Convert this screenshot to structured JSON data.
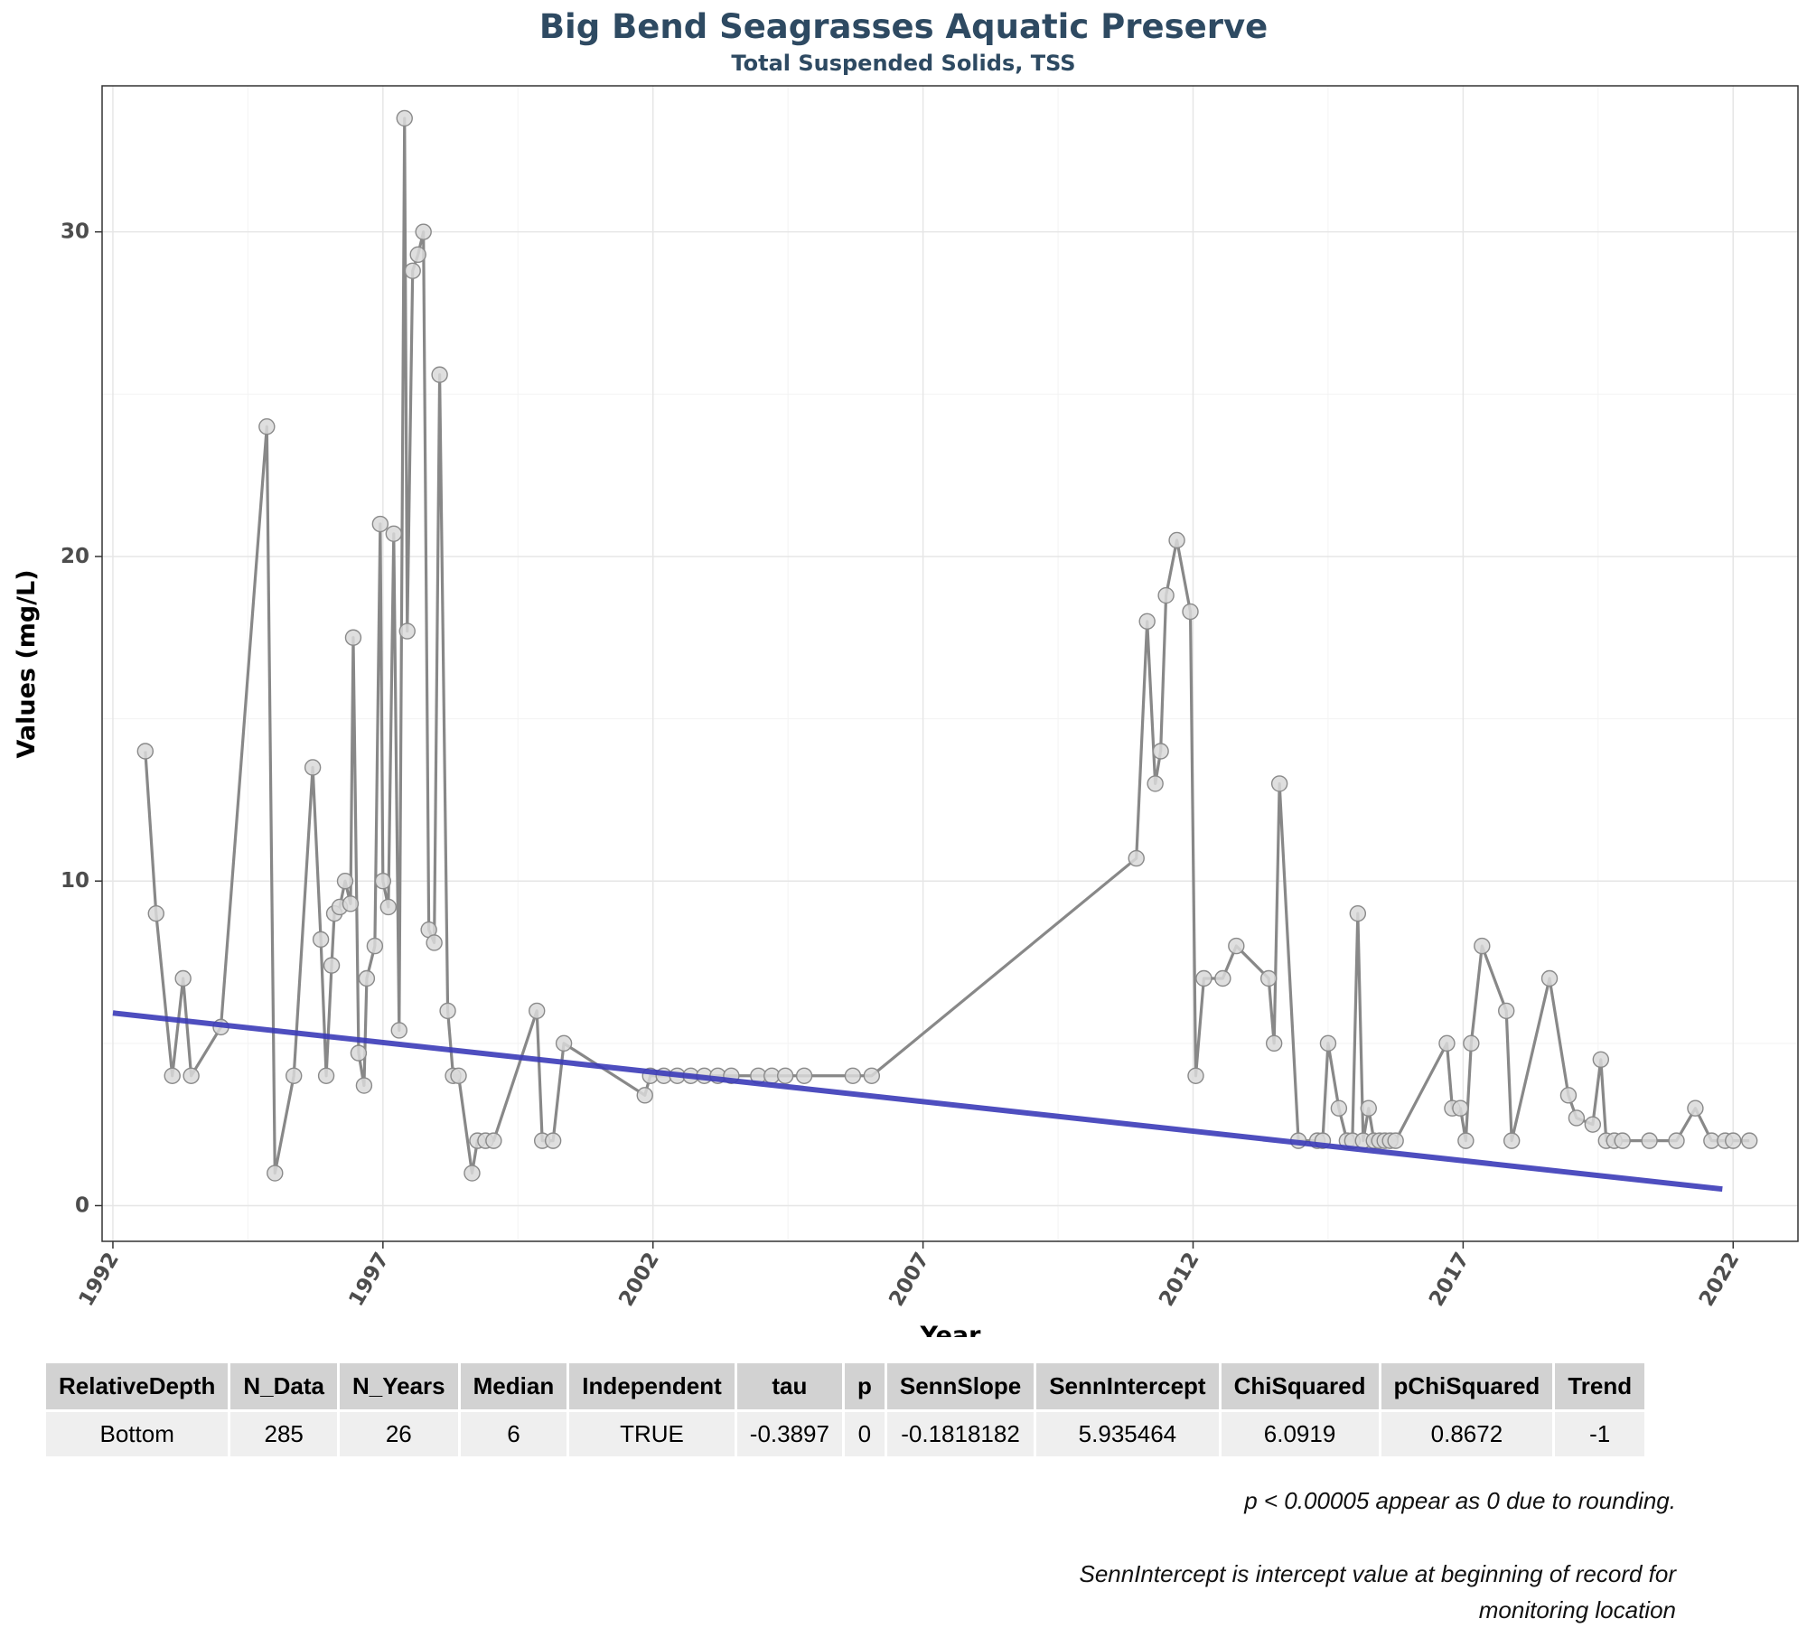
{
  "chart_data": {
    "type": "line",
    "title": "Big Bend Seagrasses Aquatic Preserve",
    "subtitle": "Total Suspended Solids, TSS",
    "xlabel": "Year",
    "ylabel": "Values (mg/L)",
    "xlim": [
      1991.8,
      2023.2
    ],
    "ylim": [
      -1.1,
      34.5
    ],
    "x_ticks": [
      1992,
      1997,
      2002,
      2007,
      2012,
      2017,
      2022
    ],
    "y_ticks": [
      0,
      10,
      20,
      30
    ],
    "grid": true,
    "series": [
      {
        "type": "line",
        "color": "#888888",
        "points": [
          [
            1992.6,
            14.0
          ],
          [
            1992.8,
            9.0
          ],
          [
            1993.1,
            4.0
          ],
          [
            1993.3,
            7.0
          ],
          [
            1993.45,
            4.0
          ],
          [
            1994.0,
            5.5
          ],
          [
            1994.85,
            24.0
          ],
          [
            1995.0,
            1.0
          ],
          [
            1995.35,
            4.0
          ],
          [
            1995.7,
            13.5
          ],
          [
            1995.85,
            8.2
          ],
          [
            1995.95,
            4.0
          ],
          [
            1996.05,
            7.4
          ],
          [
            1996.1,
            9.0
          ],
          [
            1996.2,
            9.2
          ],
          [
            1996.3,
            10.0
          ],
          [
            1996.4,
            9.3
          ],
          [
            1996.45,
            17.5
          ],
          [
            1996.55,
            4.7
          ],
          [
            1996.65,
            3.7
          ],
          [
            1996.7,
            7.0
          ],
          [
            1996.85,
            8.0
          ],
          [
            1996.95,
            21.0
          ],
          [
            1997.0,
            10.0
          ],
          [
            1997.1,
            9.2
          ],
          [
            1997.2,
            20.7
          ],
          [
            1997.3,
            5.4
          ],
          [
            1997.4,
            33.5
          ],
          [
            1997.45,
            17.7
          ],
          [
            1997.55,
            28.8
          ],
          [
            1997.65,
            29.3
          ],
          [
            1997.75,
            30.0
          ],
          [
            1997.85,
            8.5
          ],
          [
            1997.95,
            8.1
          ],
          [
            1998.05,
            25.6
          ],
          [
            1998.2,
            6.0
          ],
          [
            1998.3,
            4.0
          ],
          [
            1998.4,
            4.0
          ],
          [
            1998.65,
            1.0
          ],
          [
            1998.75,
            2.0
          ],
          [
            1998.9,
            2.0
          ],
          [
            1999.05,
            2.0
          ],
          [
            1999.85,
            6.0
          ],
          [
            1999.95,
            2.0
          ],
          [
            2000.15,
            2.0
          ],
          [
            2000.35,
            5.0
          ],
          [
            2001.85,
            3.4
          ],
          [
            2001.95,
            4.0
          ],
          [
            2002.2,
            4.0
          ],
          [
            2002.45,
            4.0
          ],
          [
            2002.7,
            4.0
          ],
          [
            2002.95,
            4.0
          ],
          [
            2003.2,
            4.0
          ],
          [
            2003.45,
            4.0
          ],
          [
            2003.95,
            4.0
          ],
          [
            2004.2,
            4.0
          ],
          [
            2004.45,
            4.0
          ],
          [
            2004.8,
            4.0
          ],
          [
            2005.7,
            4.0
          ],
          [
            2006.05,
            4.0
          ],
          [
            2010.95,
            10.7
          ],
          [
            2011.15,
            18.0
          ],
          [
            2011.3,
            13.0
          ],
          [
            2011.4,
            14.0
          ],
          [
            2011.5,
            18.8
          ],
          [
            2011.7,
            20.5
          ],
          [
            2011.95,
            18.3
          ],
          [
            2012.05,
            4.0
          ],
          [
            2012.2,
            7.0
          ],
          [
            2012.55,
            7.0
          ],
          [
            2012.8,
            8.0
          ],
          [
            2013.4,
            7.0
          ],
          [
            2013.5,
            5.0
          ],
          [
            2013.6,
            13.0
          ],
          [
            2013.95,
            2.0
          ],
          [
            2014.3,
            2.0
          ],
          [
            2014.4,
            2.0
          ],
          [
            2014.5,
            5.0
          ],
          [
            2014.7,
            3.0
          ],
          [
            2014.85,
            2.0
          ],
          [
            2014.95,
            2.0
          ],
          [
            2015.05,
            9.0
          ],
          [
            2015.15,
            2.0
          ],
          [
            2015.25,
            3.0
          ],
          [
            2015.35,
            2.0
          ],
          [
            2015.45,
            2.0
          ],
          [
            2015.55,
            2.0
          ],
          [
            2015.65,
            2.0
          ],
          [
            2015.75,
            2.0
          ],
          [
            2016.7,
            5.0
          ],
          [
            2016.8,
            3.0
          ],
          [
            2016.95,
            3.0
          ],
          [
            2017.05,
            2.0
          ],
          [
            2017.15,
            5.0
          ],
          [
            2017.35,
            8.0
          ],
          [
            2017.8,
            6.0
          ],
          [
            2017.9,
            2.0
          ],
          [
            2018.6,
            7.0
          ],
          [
            2018.95,
            3.4
          ],
          [
            2019.1,
            2.7
          ],
          [
            2019.4,
            2.5
          ],
          [
            2019.55,
            4.5
          ],
          [
            2019.65,
            2.0
          ],
          [
            2019.8,
            2.0
          ],
          [
            2019.95,
            2.0
          ],
          [
            2020.45,
            2.0
          ],
          [
            2020.95,
            2.0
          ],
          [
            2021.3,
            3.0
          ],
          [
            2021.6,
            2.0
          ],
          [
            2021.85,
            2.0
          ],
          [
            2022.0,
            2.0
          ],
          [
            2022.3,
            2.0
          ]
        ]
      },
      {
        "type": "trend",
        "color": "#3b3bb8",
        "points": [
          [
            1992.0,
            5.935464
          ],
          [
            2021.8,
            0.51
          ]
        ]
      }
    ]
  },
  "table": {
    "headers": [
      "RelativeDepth",
      "N_Data",
      "N_Years",
      "Median",
      "Independent",
      "tau",
      "p",
      "SennSlope",
      "SennIntercept",
      "ChiSquared",
      "pChiSquared",
      "Trend"
    ],
    "row": [
      "Bottom",
      "285",
      "26",
      "6",
      "TRUE",
      "-0.3897",
      "0",
      "-0.1818182",
      "5.935464",
      "6.0919",
      "0.8672",
      "-1"
    ]
  },
  "notes": {
    "note1": "p < 0.00005 appear as 0 due to rounding.",
    "note2": "SennIntercept is intercept value at beginning of record for monitoring location"
  }
}
